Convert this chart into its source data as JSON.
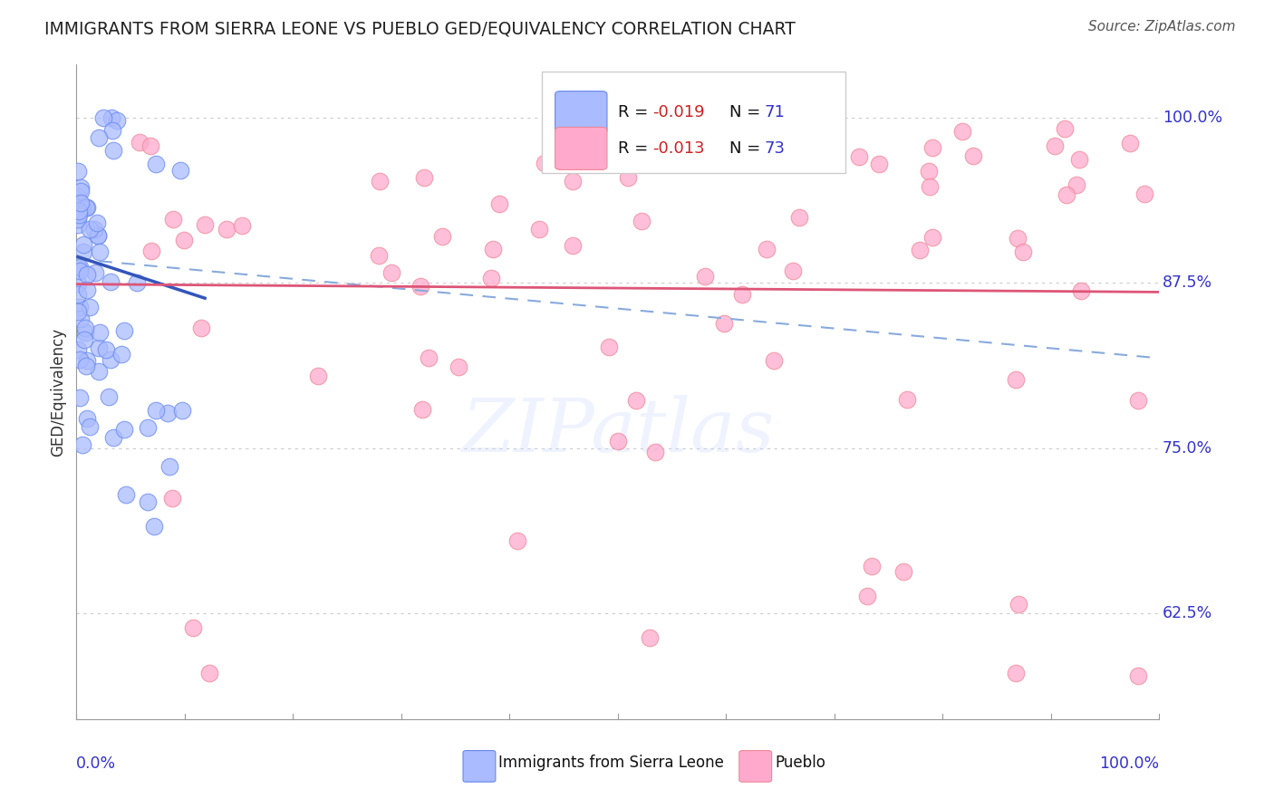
{
  "title": "IMMIGRANTS FROM SIERRA LEONE VS PUEBLO GED/EQUIVALENCY CORRELATION CHART",
  "source": "Source: ZipAtlas.com",
  "ylabel": "GED/Equivalency",
  "yticks": [
    0.625,
    0.75,
    0.875,
    1.0
  ],
  "ytick_labels": [
    "62.5%",
    "75.0%",
    "87.5%",
    "100.0%"
  ],
  "xlim": [
    0.0,
    1.0
  ],
  "ylim": [
    0.545,
    1.04
  ],
  "legend_r1": "R = -0.019",
  "legend_n1": "N = 71",
  "legend_r2": "R = -0.013",
  "legend_n2": "N = 73",
  "watermark": "ZIPatlas",
  "bg_color": "#ffffff",
  "blue_dot_fill": "#aabbff",
  "blue_dot_edge": "#6688ee",
  "pink_dot_fill": "#ffaacc",
  "pink_dot_edge": "#ee8899",
  "title_color": "#222222",
  "axis_label_color": "#3333cc",
  "grid_color": "#cccccc",
  "legend_text_color": "#111111",
  "legend_r_color": "#cc2222",
  "legend_n_color": "#3333cc",
  "source_color": "#555555"
}
